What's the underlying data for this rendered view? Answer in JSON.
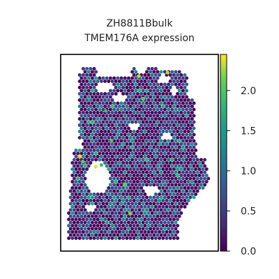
{
  "chart_data": {
    "type": "spatial-scatter",
    "title": "ZH8811Bbulk",
    "subtitle": "TMEM176A expression",
    "xlabel": "",
    "ylabel": "",
    "colorbar": {
      "colormap": "viridis",
      "range": [
        0.0,
        2.45
      ],
      "ticks": [
        0.0,
        0.5,
        1.0,
        1.5,
        2.0
      ],
      "tick_labels": [
        "0.0",
        "0.5",
        "1.0",
        "1.5",
        "2.0"
      ]
    },
    "spots_note": "Hexagonal spatial spots of a tissue section colored by TMEM176A expression; most spots 0.0-1.2, scattered high spots up to ~2.4",
    "high_spots": [
      {
        "x": 0.5,
        "y": 0.06,
        "value": 2.3
      },
      {
        "x": 0.7,
        "y": 0.04,
        "value": 2.3
      },
      {
        "x": 0.53,
        "y": 0.19,
        "value": 2.1
      },
      {
        "x": 0.27,
        "y": 0.26,
        "value": 1.9
      },
      {
        "x": 0.09,
        "y": 0.52,
        "value": 2.4
      },
      {
        "x": 0.11,
        "y": 0.55,
        "value": 2.1
      },
      {
        "x": 0.2,
        "y": 0.58,
        "value": 2.4
      },
      {
        "x": 0.24,
        "y": 0.57,
        "value": 1.9
      },
      {
        "x": 0.4,
        "y": 0.68,
        "value": 2.1
      },
      {
        "x": 0.44,
        "y": 0.85,
        "value": 2.2
      },
      {
        "x": 0.31,
        "y": 0.43,
        "value": 2.0
      }
    ]
  }
}
